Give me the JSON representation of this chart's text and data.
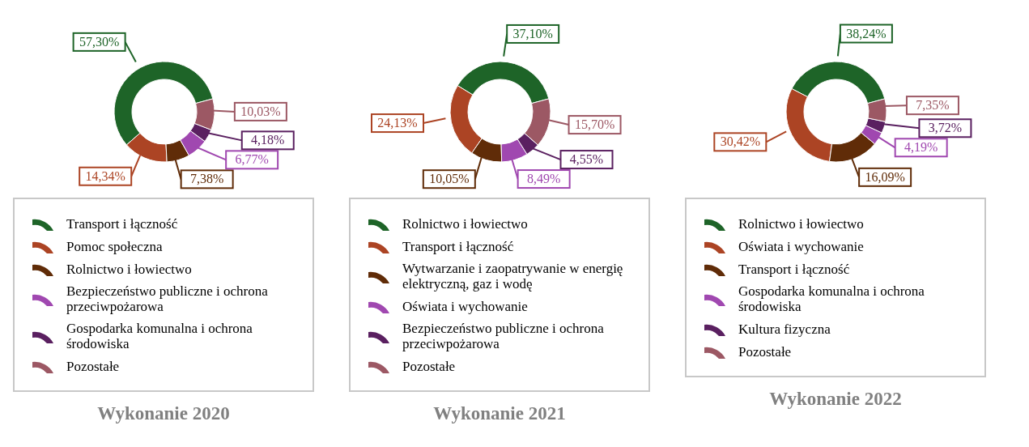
{
  "chart_data": [
    {
      "type": "donut",
      "title": "Wykonanie 2020",
      "legend": "bottom",
      "categories": [
        "Transport i łączność",
        "Pomoc społeczna",
        "Rolnictwo i łowiectwo",
        "Bezpieczeństwo publiczne i ochrona przeciwpożarowa",
        "Gospodarka komunalna i ochrona środowiska",
        "Pozostałe"
      ],
      "values": [
        57.3,
        14.34,
        7.38,
        6.77,
        4.18,
        10.03
      ],
      "value_labels": [
        "57,30%",
        "14,34%",
        "7,38%",
        "6,77%",
        "4,18%",
        "10,03%"
      ],
      "colors": [
        "#1e6428",
        "#ac4424",
        "#602c08",
        "#a048b0",
        "#5a2060",
        "#9c5864"
      ]
    },
    {
      "type": "donut",
      "title": "Wykonanie 2021",
      "legend": "bottom",
      "categories": [
        "Rolnictwo i łowiectwo",
        "Transport i łączność",
        "Wytwarzanie i zaopatrywanie w energię elektryczną, gaz i wodę",
        "Oświata i wychowanie",
        "Bezpieczeństwo publiczne i ochrona przeciwpożarowa",
        "Pozostałe"
      ],
      "values": [
        37.1,
        24.13,
        10.05,
        8.49,
        4.55,
        15.7
      ],
      "value_labels": [
        "37,10%",
        "24,13%",
        "10,05%",
        "8,49%",
        "4,55%",
        "15,70%"
      ],
      "colors": [
        "#1e6428",
        "#ac4424",
        "#602c08",
        "#a048b0",
        "#5a2060",
        "#9c5864"
      ]
    },
    {
      "type": "donut",
      "title": "Wykonanie 2022",
      "legend": "bottom",
      "categories": [
        "Rolnictwo i łowiectwo",
        "Oświata i wychowanie",
        "Transport i łączność",
        "Gospodarka komunalna i ochrona środowiska",
        "Kultura fizyczna",
        "Pozostałe"
      ],
      "values": [
        38.24,
        30.42,
        16.09,
        4.19,
        3.72,
        7.35
      ],
      "value_labels": [
        "38,24%",
        "30,42%",
        "16,09%",
        "4,19%",
        "3,72%",
        "7,35%"
      ],
      "colors": [
        "#1e6428",
        "#ac4424",
        "#602c08",
        "#a048b0",
        "#5a2060",
        "#9c5864"
      ]
    }
  ]
}
